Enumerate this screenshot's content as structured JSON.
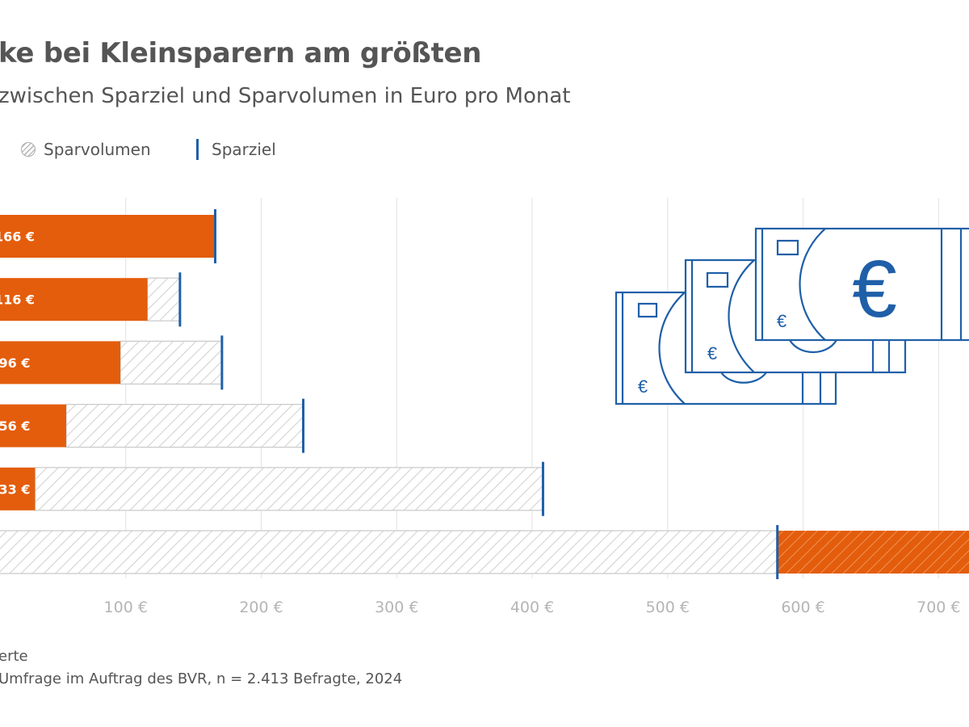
{
  "title": "ke bei Kleinsparern am größten",
  "subtitle": "zwischen Sparziel und Sparvolumen in Euro pro Monat",
  "legend": {
    "volume": "Sparvolumen",
    "goal": "Sparziel"
  },
  "colors": {
    "orange": "#e35d0c",
    "blue": "#1f5fa8",
    "grid": "#e2e2e2",
    "hatch_line": "#c4c4c4",
    "tick": "#b5b5b5"
  },
  "footnote": {
    "line1": "erte",
    "line2": "Umfrage im Auftrag des BVR, n = 2.413 Befragte, 2024"
  },
  "icon": "euro-banknotes-icon",
  "chart_data": {
    "type": "bar",
    "orientation": "horizontal",
    "xlim": [
      0,
      800
    ],
    "x_ticks": [
      100,
      200,
      300,
      400,
      500,
      600,
      700
    ],
    "tick_labels": [
      "100 €",
      "200 €",
      "300 €",
      "400 €",
      "500 €",
      "600 €",
      "700 €"
    ],
    "grid": true,
    "series": [
      {
        "name": "Sparvolumen",
        "values": [
          166,
          116,
          96,
          56,
          33,
          800
        ],
        "labels": [
          "166 €",
          "116 €",
          "96 €",
          "56 €",
          "33 €",
          ""
        ]
      },
      {
        "name": "Sparziel",
        "values": [
          166,
          140,
          171,
          231,
          408,
          581
        ]
      }
    ]
  }
}
